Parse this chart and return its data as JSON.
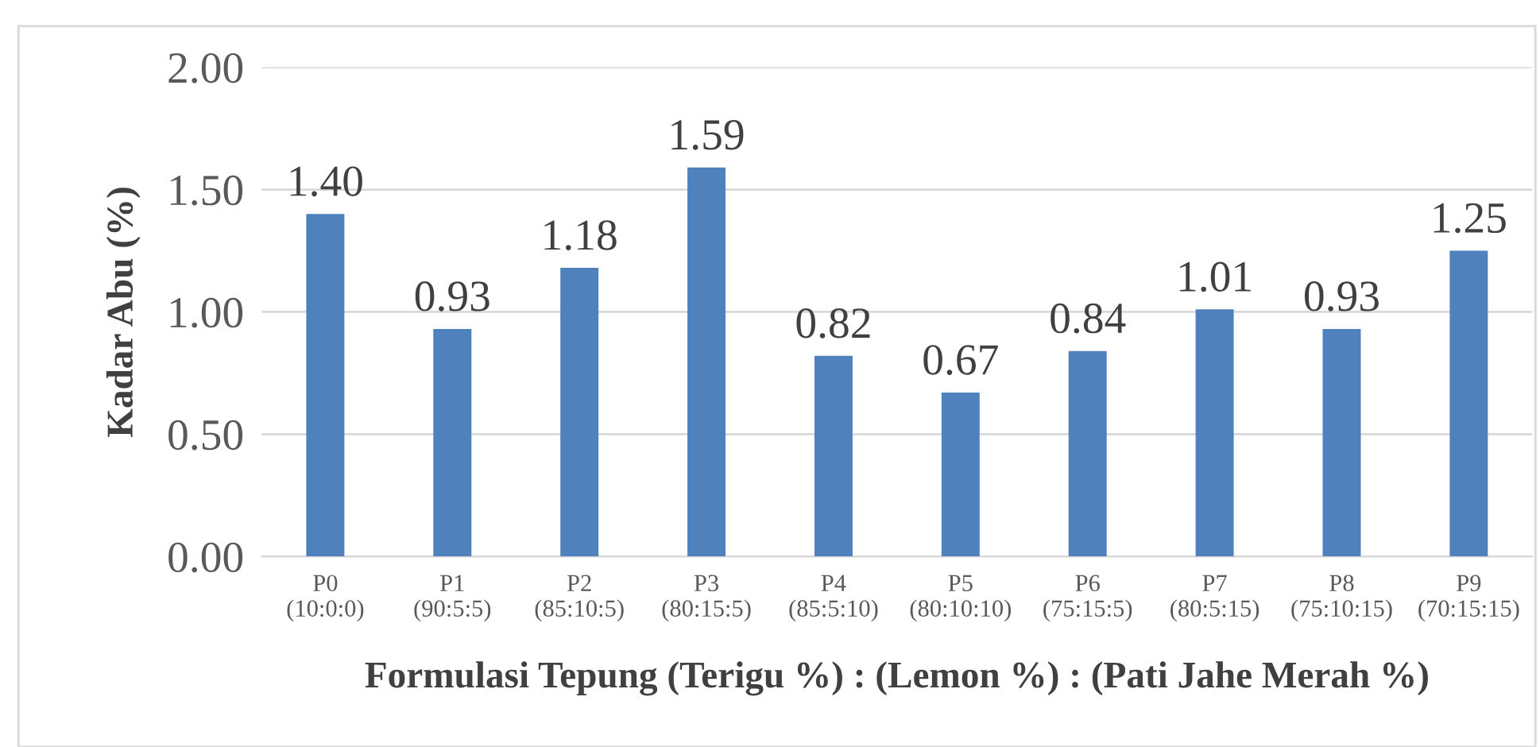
{
  "chart_data": {
    "type": "bar",
    "xlabel": "Formulasi Tepung (Terigu %) : (Lemon %) : (Pati Jahe Merah %)",
    "ylabel": "Kadar Abu (%)",
    "categories": [
      "P0\n(10:0:0)",
      "P1\n(90:5:5)",
      "P2\n(85:10:5)",
      "P3\n(80:15:5)",
      "P4\n(85:5:10)",
      "P5\n(80:10:10)",
      "P6\n(75:15:5)",
      "P7\n(80:5:15)",
      "P8\n(75:10:15)",
      "P9\n(70:15:15)"
    ],
    "values": [
      1.4,
      0.93,
      1.18,
      1.59,
      0.82,
      0.67,
      0.84,
      1.01,
      0.93,
      1.25
    ],
    "color": "#4f81bd",
    "ylim": [
      0,
      2
    ],
    "yticks": [
      {
        "value": 0,
        "label": "0.00"
      },
      {
        "value": 0.5,
        "label": "0.50"
      },
      {
        "value": 1,
        "label": "1.00"
      },
      {
        "value": 1.5,
        "label": "1.50"
      },
      {
        "value": 2,
        "label": "2.00"
      }
    ],
    "value_labels": [
      "1.40",
      "0.93",
      "1.18",
      "1.59",
      "0.82",
      "0.67",
      "0.84",
      "1.01",
      "0.93",
      "1.25"
    ],
    "grid": "y"
  }
}
